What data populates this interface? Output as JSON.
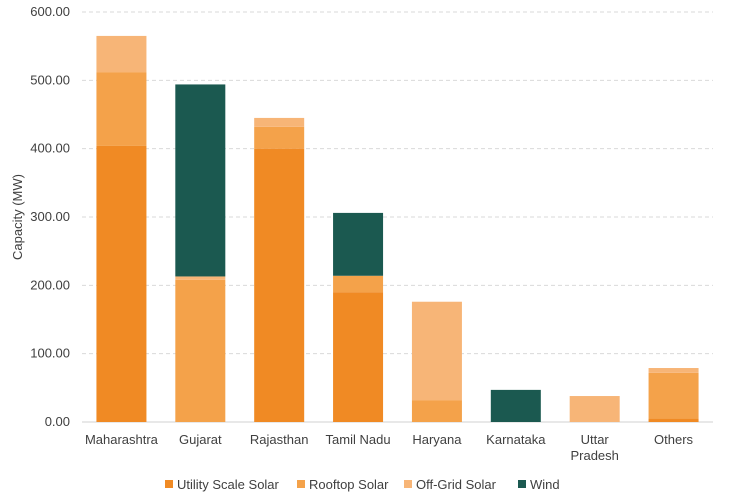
{
  "chart_data": {
    "type": "bar",
    "stacked": true,
    "title": "",
    "xlabel": "",
    "ylabel": "Capacity (MW)",
    "ylim": [
      0,
      600
    ],
    "yticks": [
      "0.00",
      "100.00",
      "200.00",
      "300.00",
      "400.00",
      "500.00",
      "600.00"
    ],
    "grid": true,
    "legend_position": "bottom",
    "categories": [
      [
        "Maharashtra"
      ],
      [
        "Gujarat"
      ],
      [
        "Rajasthan"
      ],
      [
        "Tamil Nadu"
      ],
      [
        "Haryana"
      ],
      [
        "Karnataka"
      ],
      [
        "Uttar",
        "Pradesh"
      ],
      [
        "Others"
      ]
    ],
    "series": [
      {
        "name": "Utility Scale Solar",
        "color": "#f08a24",
        "values": [
          404,
          0,
          400,
          190,
          0,
          0,
          0,
          5
        ]
      },
      {
        "name": "Rooftop Solar",
        "color": "#f4a24a",
        "values": [
          108,
          208,
          32,
          24,
          32,
          0,
          0,
          67
        ]
      },
      {
        "name": "Off-Grid Solar",
        "color": "#f7b577",
        "values": [
          53,
          5,
          13,
          0,
          144,
          0,
          38,
          7
        ]
      },
      {
        "name": "Wind",
        "color": "#1b5950",
        "values": [
          0,
          281,
          0,
          92,
          0,
          47,
          0,
          0
        ]
      }
    ]
  }
}
